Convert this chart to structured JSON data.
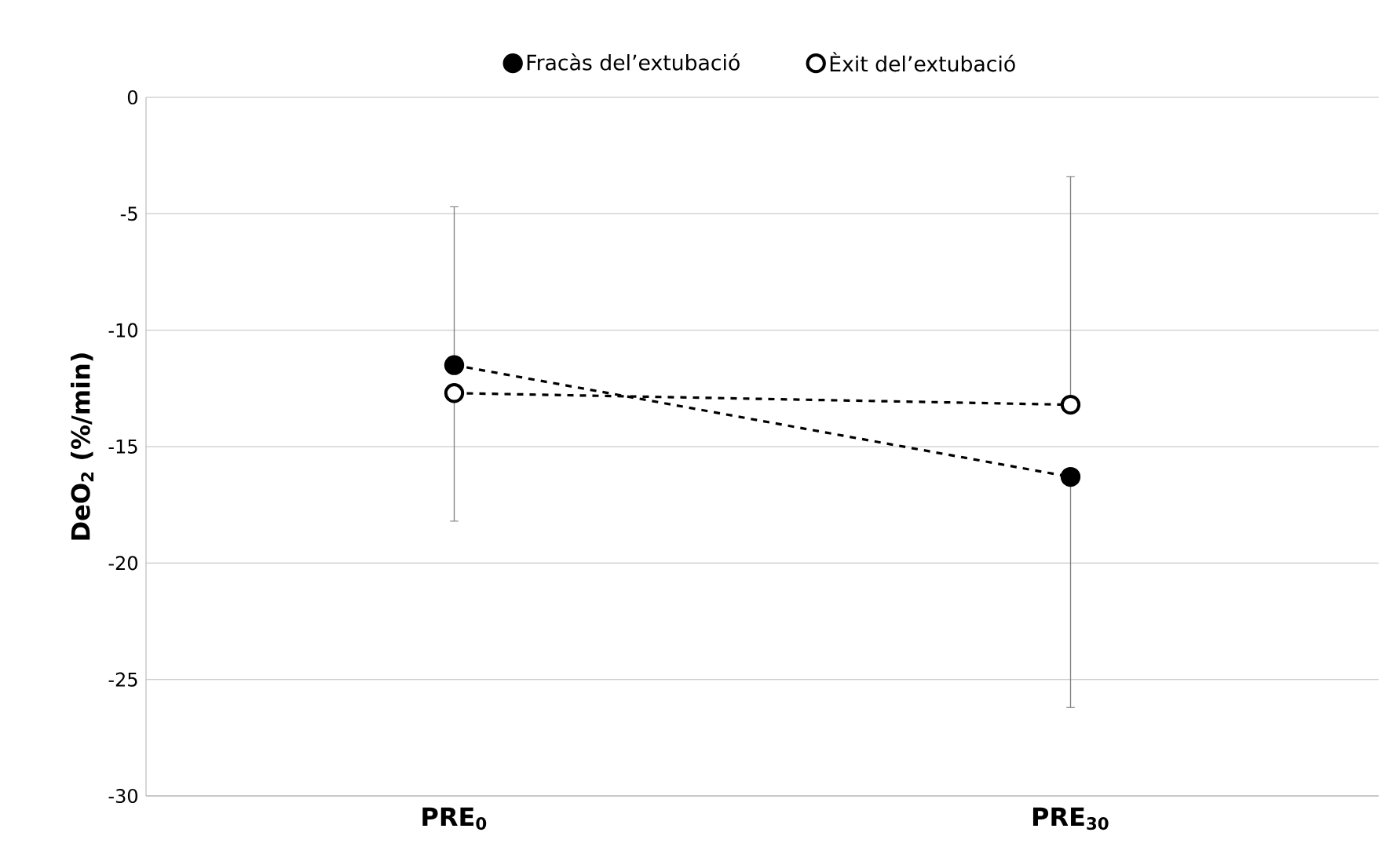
{
  "chart_data": {
    "type": "line",
    "ylabel": "DeO$_{2}$ (%/min)",
    "categories": [
      "PRE$_{0}$",
      "PRE$_{30}$"
    ],
    "series": [
      {
        "name": "Fracàs del’extubació",
        "color": "#000000",
        "values": [
          -11.5,
          -16.3
        ],
        "errors": [
          [
            -11.5,
            -4.7
          ],
          [
            -26.2,
            -16.3
          ]
        ]
      },
      {
        "name": "Èxit del’extubació",
        "color": "#ffffff",
        "values": [
          -12.7,
          -13.2
        ],
        "errors": [
          [
            -18.2,
            -12.7
          ],
          [
            -13.2,
            -3.4
          ]
        ]
      }
    ],
    "ylim": [
      -30,
      0
    ],
    "yticks": [
      -30,
      -25,
      -20,
      -15,
      -10,
      -5,
      0
    ],
    "grid": "y",
    "legend": "top",
    "marker": "circle",
    "line_style": "dashed"
  }
}
